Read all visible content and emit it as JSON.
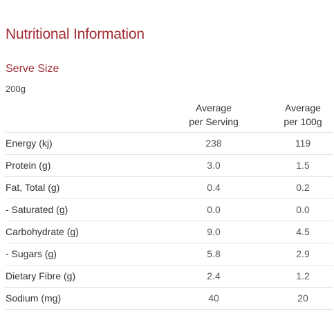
{
  "title": "Nutritional Information",
  "serve_size": {
    "label": "Serve Size",
    "value": "200g"
  },
  "table": {
    "headers": {
      "per_serving_line1": "Average",
      "per_serving_line2": "per Serving",
      "per_100g_line1": "Average",
      "per_100g_line2": "per 100g"
    },
    "rows": [
      {
        "name": "Energy (kj)",
        "per_serving": "238",
        "per_100g": "119"
      },
      {
        "name": "Protein (g)",
        "per_serving": "3.0",
        "per_100g": "1.5"
      },
      {
        "name": "Fat, Total (g)",
        "per_serving": "0.4",
        "per_100g": "0.2"
      },
      {
        "name": "- Saturated (g)",
        "per_serving": "0.0",
        "per_100g": "0.0"
      },
      {
        "name": "Carbohydrate (g)",
        "per_serving": "9.0",
        "per_100g": "4.5"
      },
      {
        "name": "- Sugars (g)",
        "per_serving": "5.8",
        "per_100g": "2.9"
      },
      {
        "name": "Dietary Fibre (g)",
        "per_serving": "2.4",
        "per_100g": "1.2"
      },
      {
        "name": "Sodium (mg)",
        "per_serving": "40",
        "per_100g": "20"
      }
    ]
  },
  "colors": {
    "accent": "#a12d33",
    "text": "#333333",
    "divider": "#e3e3e3"
  }
}
